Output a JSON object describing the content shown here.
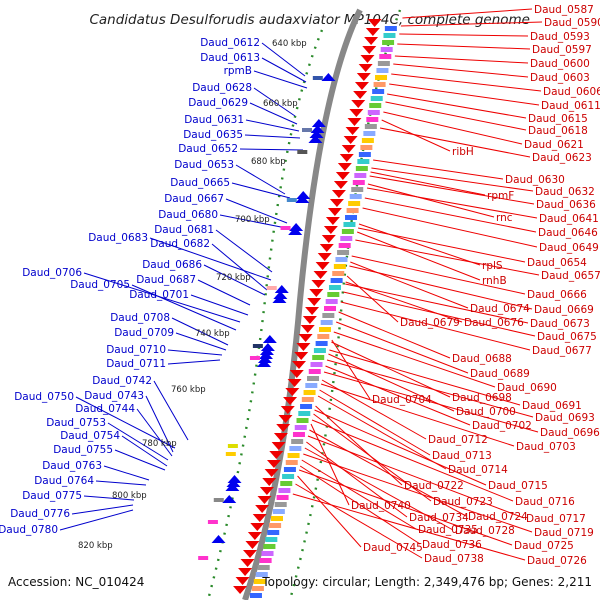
{
  "title": "Candidatus Desulforudis audaxviator MP104C, complete genome",
  "accession": "Accession: NC_010424",
  "topology": "Topology: circular; Length: 2,349,476 bp; Genes: 2,211",
  "ticks": [
    "640 kbp",
    "660 kbp",
    "680 kbp",
    "700 kbp",
    "720 kbp",
    "740 kbp",
    "760 kbp",
    "780 kbp",
    "800 kbp",
    "820 kbp"
  ],
  "colors": {
    "reverse_genes": "#ee0000",
    "forward_genes": "#0000ee",
    "label_blue": "#0000cc",
    "label_red": "#cc0000",
    "backbone": "#888888",
    "tick_dots": "#2a8a2a"
  },
  "left_labels": [
    "Daud_0612",
    "Daud_0613",
    "rpmB",
    "Daud_0628",
    "Daud_0629",
    "Daud_0631",
    "Daud_0635",
    "Daud_0652",
    "Daud_0653",
    "Daud_0665",
    "Daud_0667",
    "Daud_0680",
    "Daud_0681",
    "Daud_0683",
    "Daud_0682",
    "Daud_0686",
    "Daud_0706",
    "Daud_0687",
    "Daud_0705",
    "Daud_0701",
    "Daud_0708",
    "Daud_0709",
    "Daud_0710",
    "Daud_0711",
    "Daud_0742",
    "Daud_0750",
    "Daud_0743",
    "Daud_0744",
    "Daud_0753",
    "Daud_0754",
    "Daud_0755",
    "Daud_0763",
    "Daud_0764",
    "Daud_0775",
    "Daud_0776",
    "Daud_0780"
  ],
  "right_labels": [
    "Daud_0587",
    "Daud_0590",
    "Daud_0593",
    "Daud_0597",
    "Daud_0600",
    "Daud_0603",
    "Daud_0606",
    "Daud_0611",
    "Daud_0615",
    "Daud_0618",
    "Daud_0621",
    "ribH",
    "Daud_0623",
    "Daud_0630",
    "Daud_0632",
    "rpmF",
    "Daud_0636",
    "rnc",
    "Daud_0641",
    "Daud_0646",
    "Daud_0649",
    "rplS",
    "Daud_0654",
    "rnhB",
    "Daud_0657",
    "Daud_0666",
    "Daud_0674",
    "Daud_0669",
    "Daud_0679",
    "Daud_0676",
    "Daud_0673",
    "Daud_0675",
    "Daud_0677",
    "Daud_0688",
    "Daud_0689",
    "Daud_0690",
    "Daud_0704",
    "Daud_0698",
    "Daud_0691",
    "Daud_0700",
    "Daud_0693",
    "Daud_0702",
    "Daud_0696",
    "Daud_0712",
    "Daud_0703",
    "Daud_0713",
    "Daud_0714",
    "Daud_0722",
    "Daud_0715",
    "Daud_0723",
    "Daud_0716",
    "Daud_0740",
    "Daud_0724",
    "Daud_0717",
    "Daud_0734",
    "Daud_0728",
    "Daud_0719",
    "Daud_0735",
    "Daud_0736",
    "Daud_0725",
    "Daud_0745",
    "Daud_0738",
    "Daud_0726"
  ]
}
